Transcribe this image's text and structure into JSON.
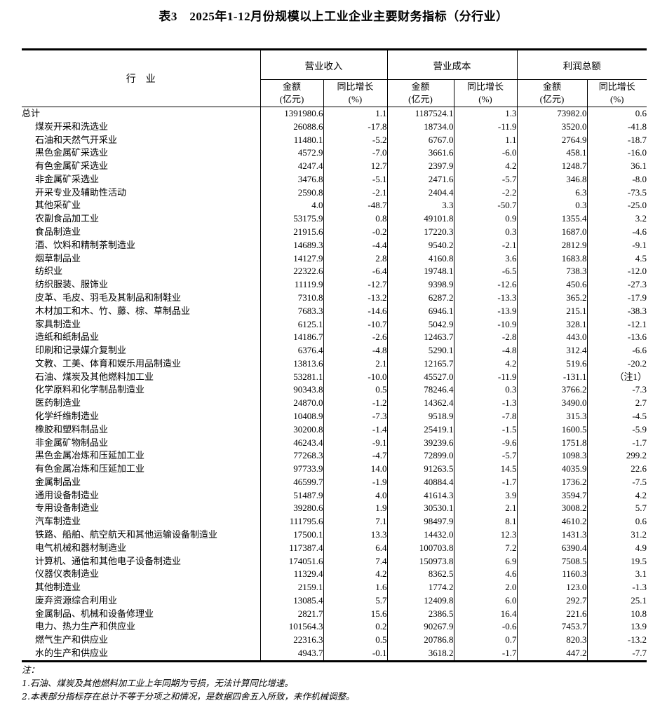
{
  "title": "表3　2025年1-12月份规模以上工业企业主要财务指标（分行业）",
  "table": {
    "header": {
      "industry": "行　业",
      "groups": [
        {
          "label": "营业收入"
        },
        {
          "label": "营业成本"
        },
        {
          "label": "利润总额"
        }
      ],
      "sub_amount_line1": "金额",
      "sub_amount_line2": "(亿元)",
      "sub_growth_line1": "同比增长",
      "sub_growth_line2": "(%)"
    },
    "rows": [
      {
        "industry": "总计",
        "indent": false,
        "values": [
          "1391980.6",
          "1.1",
          "1187524.1",
          "1.3",
          "73982.0",
          "0.6"
        ]
      },
      {
        "industry": "煤炭开采和洗选业",
        "indent": true,
        "values": [
          "26088.6",
          "-17.8",
          "18734.0",
          "-11.9",
          "3520.0",
          "-41.8"
        ]
      },
      {
        "industry": "石油和天然气开采业",
        "indent": true,
        "values": [
          "11480.1",
          "-5.2",
          "6767.0",
          "1.1",
          "2764.9",
          "-18.7"
        ]
      },
      {
        "industry": "黑色金属矿采选业",
        "indent": true,
        "values": [
          "4572.9",
          "-7.0",
          "3661.6",
          "-6.0",
          "458.1",
          "-16.0"
        ]
      },
      {
        "industry": "有色金属矿采选业",
        "indent": true,
        "values": [
          "4247.4",
          "12.7",
          "2397.9",
          "4.2",
          "1248.7",
          "36.1"
        ]
      },
      {
        "industry": "非金属矿采选业",
        "indent": true,
        "values": [
          "3476.8",
          "-5.1",
          "2471.6",
          "-5.7",
          "346.8",
          "-8.0"
        ]
      },
      {
        "industry": "开采专业及辅助性活动",
        "indent": true,
        "values": [
          "2590.8",
          "-2.1",
          "2404.4",
          "-2.2",
          "6.3",
          "-73.5"
        ]
      },
      {
        "industry": "其他采矿业",
        "indent": true,
        "values": [
          "4.0",
          "-48.7",
          "3.3",
          "-50.7",
          "0.3",
          "-25.0"
        ]
      },
      {
        "industry": "农副食品加工业",
        "indent": true,
        "values": [
          "53175.9",
          "0.8",
          "49101.8",
          "0.9",
          "1355.4",
          "3.2"
        ]
      },
      {
        "industry": "食品制造业",
        "indent": true,
        "values": [
          "21915.6",
          "-0.2",
          "17220.3",
          "0.3",
          "1687.0",
          "-4.6"
        ]
      },
      {
        "industry": "酒、饮料和精制茶制造业",
        "indent": true,
        "values": [
          "14689.3",
          "-4.4",
          "9540.2",
          "-2.1",
          "2812.9",
          "-9.1"
        ]
      },
      {
        "industry": "烟草制品业",
        "indent": true,
        "values": [
          "14127.9",
          "2.8",
          "4160.8",
          "3.6",
          "1683.8",
          "4.5"
        ]
      },
      {
        "industry": "纺织业",
        "indent": true,
        "values": [
          "22322.6",
          "-6.4",
          "19748.1",
          "-6.5",
          "738.3",
          "-12.0"
        ]
      },
      {
        "industry": "纺织服装、服饰业",
        "indent": true,
        "values": [
          "11119.9",
          "-12.7",
          "9398.9",
          "-12.6",
          "450.6",
          "-27.3"
        ]
      },
      {
        "industry": "皮革、毛皮、羽毛及其制品和制鞋业",
        "indent": true,
        "values": [
          "7310.8",
          "-13.2",
          "6287.2",
          "-13.3",
          "365.2",
          "-17.9"
        ]
      },
      {
        "industry": "木材加工和木、竹、藤、棕、草制品业",
        "indent": true,
        "values": [
          "7683.3",
          "-14.6",
          "6946.1",
          "-13.9",
          "215.1",
          "-38.3"
        ]
      },
      {
        "industry": "家具制造业",
        "indent": true,
        "values": [
          "6125.1",
          "-10.7",
          "5042.9",
          "-10.9",
          "328.1",
          "-12.1"
        ]
      },
      {
        "industry": "造纸和纸制品业",
        "indent": true,
        "values": [
          "14186.7",
          "-2.6",
          "12463.7",
          "-2.8",
          "443.0",
          "-13.6"
        ]
      },
      {
        "industry": "印刷和记录媒介复制业",
        "indent": true,
        "values": [
          "6376.4",
          "-4.8",
          "5290.1",
          "-4.8",
          "312.4",
          "-6.6"
        ]
      },
      {
        "industry": "文教、工美、体育和娱乐用品制造业",
        "indent": true,
        "values": [
          "13813.6",
          "2.1",
          "12165.7",
          "4.2",
          "519.6",
          "-20.2"
        ]
      },
      {
        "industry": "石油、煤炭及其他燃料加工业",
        "indent": true,
        "values": [
          "53281.1",
          "-10.0",
          "45527.0",
          "-11.9",
          "-131.1",
          "（注1）"
        ]
      },
      {
        "industry": "化学原料和化学制品制造业",
        "indent": true,
        "values": [
          "90343.8",
          "0.5",
          "78246.4",
          "0.3",
          "3766.2",
          "-7.3"
        ]
      },
      {
        "industry": "医药制造业",
        "indent": true,
        "values": [
          "24870.0",
          "-1.2",
          "14362.4",
          "-1.3",
          "3490.0",
          "2.7"
        ]
      },
      {
        "industry": "化学纤维制造业",
        "indent": true,
        "values": [
          "10408.9",
          "-7.3",
          "9518.9",
          "-7.8",
          "315.3",
          "-4.5"
        ]
      },
      {
        "industry": "橡胶和塑料制品业",
        "indent": true,
        "values": [
          "30200.8",
          "-1.4",
          "25419.1",
          "-1.5",
          "1600.5",
          "-5.9"
        ]
      },
      {
        "industry": "非金属矿物制品业",
        "indent": true,
        "values": [
          "46243.4",
          "-9.1",
          "39239.6",
          "-9.6",
          "1751.8",
          "-1.7"
        ]
      },
      {
        "industry": "黑色金属冶炼和压延加工业",
        "indent": true,
        "values": [
          "77268.3",
          "-4.7",
          "72899.0",
          "-5.7",
          "1098.3",
          "299.2"
        ]
      },
      {
        "industry": "有色金属冶炼和压延加工业",
        "indent": true,
        "values": [
          "97733.9",
          "14.0",
          "91263.5",
          "14.5",
          "4035.9",
          "22.6"
        ]
      },
      {
        "industry": "金属制品业",
        "indent": true,
        "values": [
          "46599.7",
          "-1.9",
          "40884.4",
          "-1.7",
          "1736.2",
          "-7.5"
        ]
      },
      {
        "industry": "通用设备制造业",
        "indent": true,
        "values": [
          "51487.9",
          "4.0",
          "41614.3",
          "3.9",
          "3594.7",
          "4.2"
        ]
      },
      {
        "industry": "专用设备制造业",
        "indent": true,
        "values": [
          "39280.6",
          "1.9",
          "30530.1",
          "2.1",
          "3008.2",
          "5.7"
        ]
      },
      {
        "industry": "汽车制造业",
        "indent": true,
        "values": [
          "111795.6",
          "7.1",
          "98497.9",
          "8.1",
          "4610.2",
          "0.6"
        ]
      },
      {
        "industry": "铁路、船舶、航空航天和其他运输设备制造业",
        "indent": true,
        "values": [
          "17500.1",
          "13.3",
          "14432.0",
          "12.3",
          "1431.3",
          "31.2"
        ]
      },
      {
        "industry": "电气机械和器材制造业",
        "indent": true,
        "values": [
          "117387.4",
          "6.4",
          "100703.8",
          "7.2",
          "6390.4",
          "4.9"
        ]
      },
      {
        "industry": "计算机、通信和其他电子设备制造业",
        "indent": true,
        "values": [
          "174051.6",
          "7.4",
          "150973.8",
          "6.9",
          "7508.5",
          "19.5"
        ]
      },
      {
        "industry": "仪器仪表制造业",
        "indent": true,
        "values": [
          "11329.4",
          "4.2",
          "8362.5",
          "4.6",
          "1160.3",
          "3.1"
        ]
      },
      {
        "industry": "其他制造业",
        "indent": true,
        "values": [
          "2159.1",
          "1.6",
          "1774.2",
          "2.0",
          "123.0",
          "-1.3"
        ]
      },
      {
        "industry": "废弃资源综合利用业",
        "indent": true,
        "values": [
          "13085.4",
          "5.7",
          "12409.8",
          "6.0",
          "292.7",
          "25.1"
        ]
      },
      {
        "industry": "金属制品、机械和设备修理业",
        "indent": true,
        "values": [
          "2821.7",
          "15.6",
          "2386.5",
          "16.4",
          "221.6",
          "10.8"
        ]
      },
      {
        "industry": "电力、热力生产和供应业",
        "indent": true,
        "values": [
          "101564.3",
          "0.2",
          "90267.9",
          "-0.6",
          "7453.7",
          "13.9"
        ]
      },
      {
        "industry": "燃气生产和供应业",
        "indent": true,
        "values": [
          "22316.3",
          "0.5",
          "20786.8",
          "0.7",
          "820.3",
          "-13.2"
        ]
      },
      {
        "industry": "水的生产和供应业",
        "indent": true,
        "values": [
          "4943.7",
          "-0.1",
          "3618.2",
          "-1.7",
          "447.2",
          "-7.7"
        ]
      }
    ]
  },
  "notes": {
    "label": "注：",
    "items": [
      "1.石油、煤炭及其他燃料加工业上年同期为亏损，无法计算同比增速。",
      "2.本表部分指标存在总计不等于分项之和情况，是数据四舍五入所致，未作机械调整。"
    ]
  }
}
